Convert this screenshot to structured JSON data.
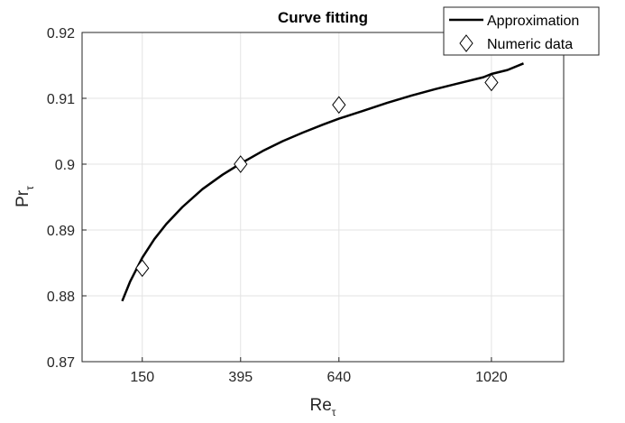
{
  "chart_data": {
    "type": "scatter",
    "title": "Curve fitting",
    "xlabel": "Re",
    "xlabel_sub": "τ",
    "ylabel": "Pr",
    "ylabel_sub": "τ",
    "xlim": [
      0,
      1200
    ],
    "ylim": [
      0.87,
      0.92
    ],
    "xticks": [
      150,
      395,
      640,
      1020
    ],
    "xtick_labels": [
      "150",
      "395",
      "640",
      "1020"
    ],
    "yticks": [
      0.87,
      0.88,
      0.89,
      0.9,
      0.91,
      0.92
    ],
    "ytick_labels": [
      "0.87",
      "0.88",
      "0.89",
      "0.9",
      "0.91",
      "0.92"
    ],
    "grid": true,
    "legend_position": "top-right",
    "series": [
      {
        "name": "Approximation",
        "kind": "line",
        "color": "#000000",
        "x": [
          100,
          120,
          150,
          180,
          210,
          250,
          300,
          350,
          395,
          450,
          500,
          550,
          600,
          640,
          700,
          760,
          820,
          880,
          940,
          1000,
          1020,
          1060,
          1100
        ],
        "y": [
          0.8792,
          0.8822,
          0.8858,
          0.8886,
          0.8909,
          0.8935,
          0.8962,
          0.8984,
          0.9001,
          0.902,
          0.9035,
          0.9048,
          0.906,
          0.9069,
          0.9081,
          0.9093,
          0.9104,
          0.9114,
          0.9123,
          0.9132,
          0.9137,
          0.9143,
          0.9153
        ]
      },
      {
        "name": "Numeric data",
        "kind": "marker",
        "marker": "diamond",
        "color": "#000000",
        "x": [
          150,
          395,
          640,
          1020
        ],
        "y": [
          0.8842,
          0.9,
          0.909,
          0.9124
        ]
      }
    ]
  }
}
